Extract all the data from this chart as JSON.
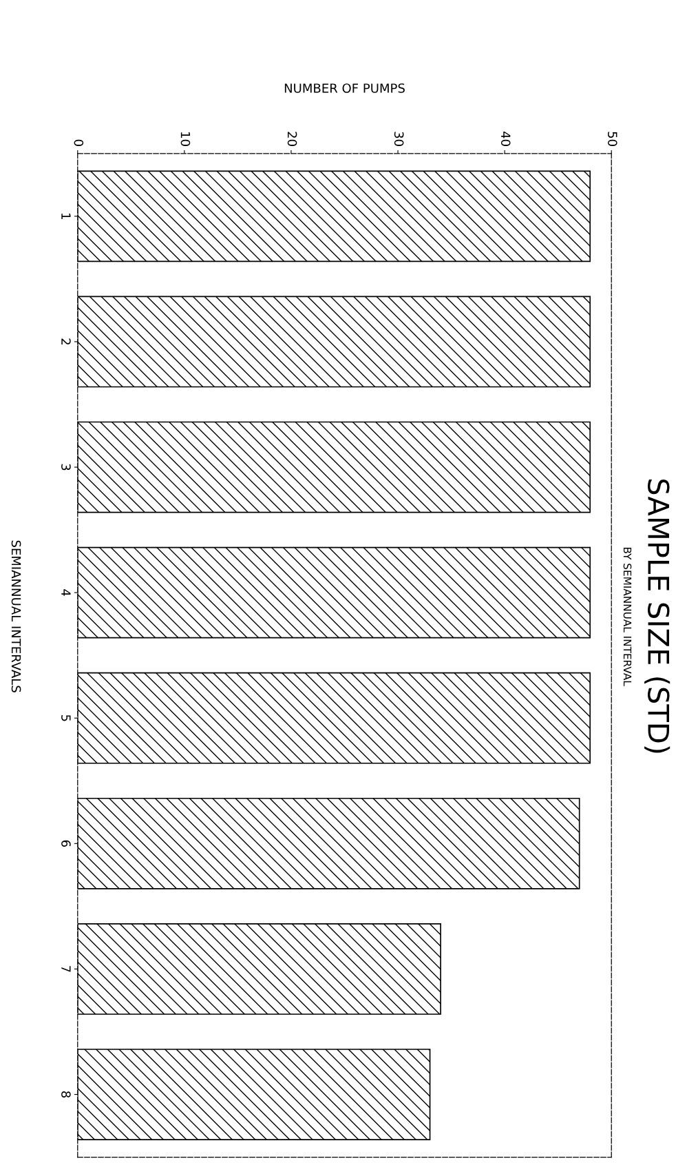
{
  "chart_data": {
    "type": "bar",
    "orientation": "horizontal",
    "title": "SAMPLE SIZE (STD)",
    "subtitle": "BY SEMIANNUAL INTERVAL",
    "xlabel": "NUMBER OF PUMPS",
    "ylabel": "SEMIANNUAL INTERVALS",
    "categories": [
      "1",
      "2",
      "3",
      "4",
      "5",
      "6",
      "7",
      "8"
    ],
    "values": [
      48,
      48,
      48,
      48,
      48,
      47,
      34,
      33
    ],
    "color": "#000000",
    "xlim": [
      0,
      50
    ],
    "xticks": [
      0,
      10,
      20,
      30,
      40,
      50
    ],
    "grid": false,
    "legend": false
  }
}
